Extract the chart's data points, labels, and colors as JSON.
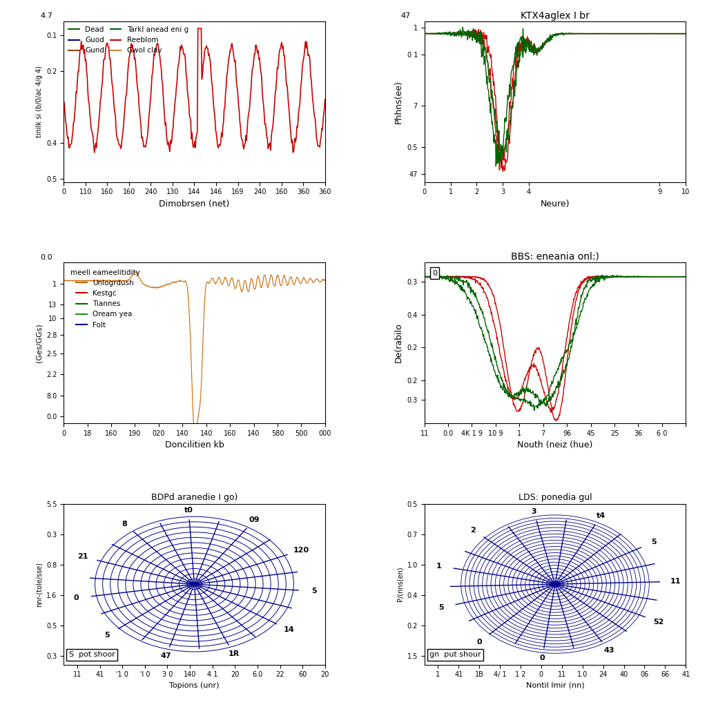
{
  "plot1": {
    "xlabel": "Dimobrsen (net)",
    "ylabel": "tinilk si (b/0/ac 4/g 4)",
    "legend": [
      "Dead",
      "Guod",
      "Gund",
      "Tarkl anead eni g",
      "Reeblom",
      "Gwol clav"
    ],
    "legend_colors": [
      "#006400",
      "#00008B",
      "#8B4513",
      "#006400",
      "#CC0000",
      "#CD853F"
    ],
    "xtick_labels": [
      "0",
      "110",
      "160",
      "160",
      "240",
      "130",
      "144",
      "146",
      "169",
      "240",
      "160",
      "360",
      "360"
    ],
    "ytick_labels": [
      "0.5",
      "0.2",
      "0.1",
      "0.4"
    ],
    "top_label": "4.7",
    "line_color": "#CC0000"
  },
  "plot2": {
    "title": "KTX4aglex I br",
    "xlabel": "Neure)",
    "ylabel": "Phhns(ee)",
    "xtick_labels": [
      "0",
      "1",
      "2",
      "3",
      "4",
      "9",
      "10"
    ],
    "ytick_labels": [
      "47",
      "0.5",
      "7",
      "0 1",
      "1"
    ],
    "line_colors": [
      "#CC0000",
      "#CC0000",
      "#006400",
      "#006400"
    ],
    "top_label": "47"
  },
  "plot3": {
    "xlabel": "Doncilitien kb",
    "ylabel": "(Ges/GGs)",
    "legend": [
      "Unlogrdush",
      "Kestgc",
      "Tiannes",
      "Oream yea",
      "Folt"
    ],
    "legend_colors": [
      "#CD6600",
      "#CC0000",
      "#006400",
      "#228B22",
      "#00008B"
    ],
    "xtick_labels": [
      "0",
      "18",
      "160",
      "190",
      "020",
      "140",
      "140",
      "160",
      "140",
      "580",
      "500",
      "000"
    ],
    "ytick_labels": [
      "0.0",
      "8.0",
      "2.2",
      "2.5",
      "2.8",
      "10",
      "13",
      "1"
    ],
    "legend_title": "meell eameelitidity",
    "line_color": "#CD6600"
  },
  "plot4": {
    "title": "BBS: eneania onl:)",
    "xlabel": "Nouth (neiz (hue)",
    "ylabel": "De(rabilo",
    "xtick_labels": [
      "11",
      "0.0",
      "4K 1 9",
      "10 9",
      "1",
      "7",
      "96",
      "45",
      "25",
      "36",
      "6 0",
      ""
    ],
    "ytick_labels": [
      "0.3",
      "0.2",
      "0.2",
      "0.4",
      "0.3"
    ],
    "box_label": "0",
    "line_colors": [
      "#CC0000",
      "#CC0000",
      "#006400",
      "#006400"
    ]
  },
  "plot5": {
    "title": "BDPd aranedie I go)",
    "xlabel": "Topions (unr)",
    "ylabel": "nnr-(tole/sse)",
    "spoke_labels_top": [
      "09",
      "120",
      "5"
    ],
    "spoke_labels_right": [
      "14",
      "1R",
      "47"
    ],
    "spoke_labels_bottom": [
      "5",
      "0",
      "21"
    ],
    "spoke_labels_left": [
      "8",
      "t0",
      "0"
    ],
    "xtick_labels": [
      "11",
      "41",
      "'1 0",
      "'l 0",
      "3 0",
      "140",
      "4 1",
      "20",
      "6.0",
      "22",
      "60",
      "20"
    ],
    "ytick_labels": [
      "0.3",
      "0.5",
      "1.6",
      "0.8",
      "0.3",
      "5.5"
    ],
    "box_label": "S  pot shoor",
    "num_circles": 13,
    "num_spokes": 11,
    "line_color": "#00008B"
  },
  "plot6": {
    "title": "LDS: ponedia gul",
    "xlabel": "Nontil lmir (nn)",
    "ylabel": "P/(nns(en)",
    "spoke_labels_top": [
      "t4",
      "5"
    ],
    "spoke_labels_right": [
      "11",
      "52",
      "43"
    ],
    "spoke_labels_bottom": [
      "0",
      "0"
    ],
    "spoke_labels_left": [
      "5",
      "1",
      "2",
      "3"
    ],
    "xtick_labels": [
      "1",
      "41",
      "1B",
      "4/ 1",
      "1 2",
      "0",
      "11",
      "1.0",
      "24",
      "40",
      "06",
      "66",
      "41"
    ],
    "ytick_labels": [
      "1.5",
      "0.2",
      "0.4",
      "1.0",
      "0.7",
      "0.5"
    ],
    "box_label": "gn  put shour",
    "num_circles": 22,
    "num_spokes": 11,
    "line_color": "#00008B"
  },
  "bg_color": "#ffffff"
}
